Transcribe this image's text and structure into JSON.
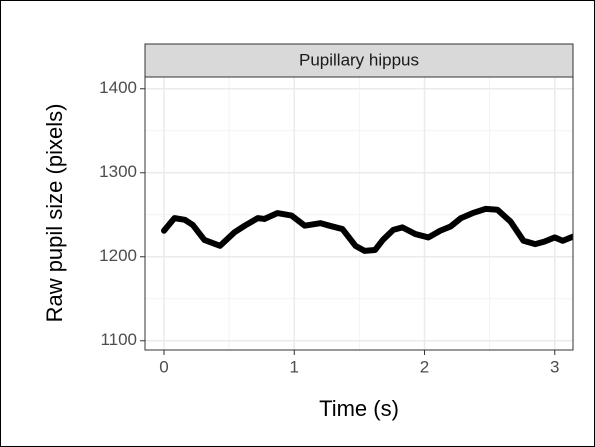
{
  "chart_data": {
    "type": "line",
    "strip": "Pupillary hippus",
    "xlabel": "Time (s)",
    "ylabel": "Raw pupil size (pixels)",
    "x": [
      0,
      0.08,
      0.16,
      0.22,
      0.31,
      0.43,
      0.54,
      0.62,
      0.72,
      0.77,
      0.87,
      0.98,
      1.08,
      1.2,
      1.27,
      1.37,
      1.47,
      1.54,
      1.62,
      1.68,
      1.76,
      1.83,
      1.93,
      2.03,
      2.12,
      2.2,
      2.28,
      2.37,
      2.47,
      2.56,
      2.66,
      2.76,
      2.85,
      2.92,
      3.0,
      3.06,
      3.14
    ],
    "series": [
      {
        "color": "#000000",
        "values": [
          1231,
          1246,
          1244,
          1238,
          1220,
          1213,
          1229,
          1237,
          1246,
          1245,
          1252,
          1249,
          1237,
          1240,
          1237,
          1233,
          1213,
          1207,
          1208,
          1220,
          1232,
          1235,
          1227,
          1223,
          1231,
          1236,
          1246,
          1252,
          1257,
          1256,
          1242,
          1219,
          1215,
          1218,
          1223,
          1219,
          1224
        ]
      }
    ],
    "xlim": [
      -0.146,
      3.14
    ],
    "ylim": [
      1089,
      1414
    ],
    "xticks": [
      0,
      1,
      2,
      3
    ],
    "yticks": [
      1100,
      1200,
      1300,
      1400
    ],
    "xminorticks": [
      0.5,
      1.5,
      2.5
    ],
    "yminorticks": [
      1150,
      1250,
      1350
    ],
    "grid": true
  }
}
